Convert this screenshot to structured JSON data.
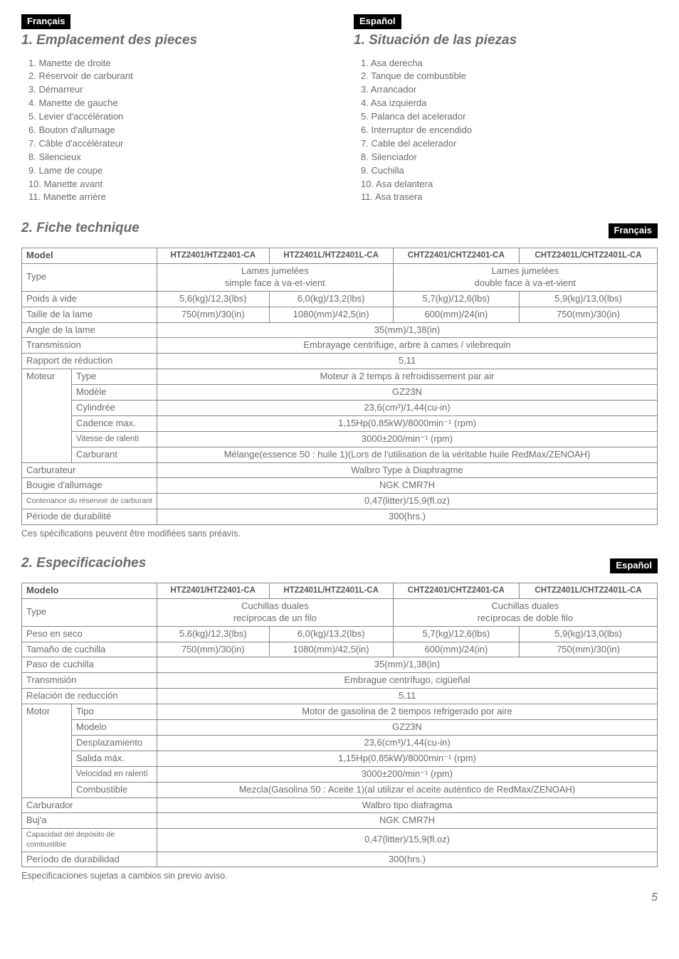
{
  "top": {
    "fr": {
      "lang": "Français",
      "title": "1. Emplacement des pieces",
      "items": [
        "1.  Manette de droite",
        "2.  Réservoir de carburant",
        "3.  Démarreur",
        "4.  Manette de gauche",
        "5.  Levier d'accélération",
        "6.  Bouton d'allumage",
        "7.  Câble d'accélérateur",
        "8.  Silencieux",
        "9.  Lame de coupe",
        "10.  Manette avant",
        "11.  Manette arrière"
      ]
    },
    "es": {
      "lang": "Español",
      "title": "1. Situación de las piezas",
      "items": [
        "1. Asa derecha",
        "2. Tanque de combustible",
        "3. Arrancador",
        "4. Asa izquierda",
        "5. Palanca del acelerador",
        "6. Interruptor de encendido",
        "7. Cable del acelerador",
        "8. Silenciador",
        "9. Cuchilla",
        "10. Asa delantera",
        "11. Asa trasera"
      ]
    }
  },
  "table_fr": {
    "title": "2. Fiche technique",
    "lang": "Français",
    "header": {
      "model": "Model",
      "c1": "HTZ2401/HTZ2401-CA",
      "c2": "HTZ2401L/HTZ2401L-CA",
      "c3": "CHTZ2401/CHTZ2401-CA",
      "c4": "CHTZ2401L/CHTZ2401L-CA"
    },
    "rows": {
      "type_label": "Type",
      "type_v12": "Lames jumelées\nsimple face à va-et-vient",
      "type_v34": "Lames jumelées\ndouble face à va-et-vient",
      "weight_label": "Poids à vide",
      "weight_c1": "5,6(kg)/12,3(lbs)",
      "weight_c2": "6,0(kg)/13,2(lbs)",
      "weight_c3": "5,7(kg)/12,6(lbs)",
      "weight_c4": "5,9(kg)/13,0(lbs)",
      "blade_label": "Taille de la lame",
      "blade_c1": "750(mm)/30(in)",
      "blade_c2": "1080(mm)/42,5(in)",
      "blade_c3": "600(mm)/24(in)",
      "blade_c4": "750(mm)/30(in)",
      "angle_label": "Angle de la lame",
      "angle_v": "35(mm)/1,38(in)",
      "trans_label": "Transmission",
      "trans_v": "Embrayage centrifuge, arbre à cames / vilebrequin",
      "ratio_label": "Rapport de réduction",
      "ratio_v": "5,11",
      "motor_label": "Moteur",
      "m_type_label": "Type",
      "m_type_v": "Moteur à 2 temps à refroidissement par air",
      "m_model_label": "Modèle",
      "m_model_v": "GZ23N",
      "m_disp_label": "Cylindrée",
      "m_disp_v": "23,6(cm³)/1,44(cu-in)",
      "m_max_label": "Cadence max.",
      "m_max_v": "1,15Hp(0.85kW)/8000min⁻¹ (rpm)",
      "m_idle_label": "Vitesse de ralenti",
      "m_idle_v": "3000±200/min⁻¹ (rpm)",
      "m_fuel_label": "Carburant",
      "m_fuel_v": "Mélange(essence 50 : huile 1)(Lors de l'utilisation de la véritable huile RedMax/ZENOAH)",
      "carb_label": "Carburateur",
      "carb_v": "Walbro Type à Diaphragme",
      "spark_label": "Bougie d'allumage",
      "spark_v": "NGK CMR7H",
      "tank_label": "Contenance du réservoir de carburant",
      "tank_v": "0,47(litter)/15,9(fl.oz)",
      "dur_label": "Période de durabilité",
      "dur_v": "300(hrs.)"
    },
    "footnote": "Ces spécifications peuvent être modifiées sans préavis."
  },
  "table_es": {
    "title": "2. Especificaciohes",
    "lang": "Español",
    "header": {
      "model": "Modelo",
      "c1": "HTZ2401/HTZ2401-CA",
      "c2": "HTZ2401L/HTZ2401L-CA",
      "c3": "CHTZ2401/CHTZ2401-CA",
      "c4": "CHTZ2401L/CHTZ2401L-CA"
    },
    "rows": {
      "type_label": "Type",
      "type_v12": "Cuchillas duales\nrecíprocas de un filo",
      "type_v34": "Cuchillas duales\nrecíprocas de doble filo",
      "weight_label": "Peso en seco",
      "weight_c1": "5,6(kg)/12,3(lbs)",
      "weight_c2": "6,0(kg)/13,2(lbs)",
      "weight_c3": "5,7(kg)/12,6(lbs)",
      "weight_c4": "5,9(kg)/13,0(lbs)",
      "blade_label": "Tamaño de cuchilla",
      "blade_c1": "750(mm)/30(in)",
      "blade_c2": "1080(mm)/42,5(in)",
      "blade_c3": "600(mm)/24(in)",
      "blade_c4": "750(mm)/30(in)",
      "angle_label": "Paso de cuchilla",
      "angle_v": "35(mm)/1,38(in)",
      "trans_label": "Transmisión",
      "trans_v": "Embrague centrífugo, cigüeñal",
      "ratio_label": "Relación de reducción",
      "ratio_v": "5,11",
      "motor_label": "Motor",
      "m_type_label": "Tipo",
      "m_type_v": "Motor de gasolina de 2 tiempos refrigerado por aire",
      "m_model_label": "Modelo",
      "m_model_v": "GZ23N",
      "m_disp_label": "Desplazamiento",
      "m_disp_v": "23,6(cm³)/1,44(cu-in)",
      "m_max_label": "Salida máx.",
      "m_max_v": "1,15Hp(0,85kW)/8000min⁻¹ (rpm)",
      "m_idle_label": "Velocidad en ralentí",
      "m_idle_v": "3000±200/min⁻¹ (rpm)",
      "m_fuel_label": "Combustible",
      "m_fuel_v": "Mezcla(Gasolina 50 : Aceite 1)(al utilizar el aceite auténtico de RedMax/ZENOAH)",
      "carb_label": "Carburador",
      "carb_v": "Walbro tipo diafragma",
      "spark_label": "Buj'a",
      "spark_v": "NGK CMR7H",
      "tank_label": "Capacidad del depósito de combustible",
      "tank_v": "0,47(litter)/15,9(fl.oz)",
      "dur_label": "Período de durabilidad",
      "dur_v": "300(hrs.)"
    },
    "footnote": "Especificaciones sujetas a cambios sin previo aviso."
  },
  "page": "5"
}
